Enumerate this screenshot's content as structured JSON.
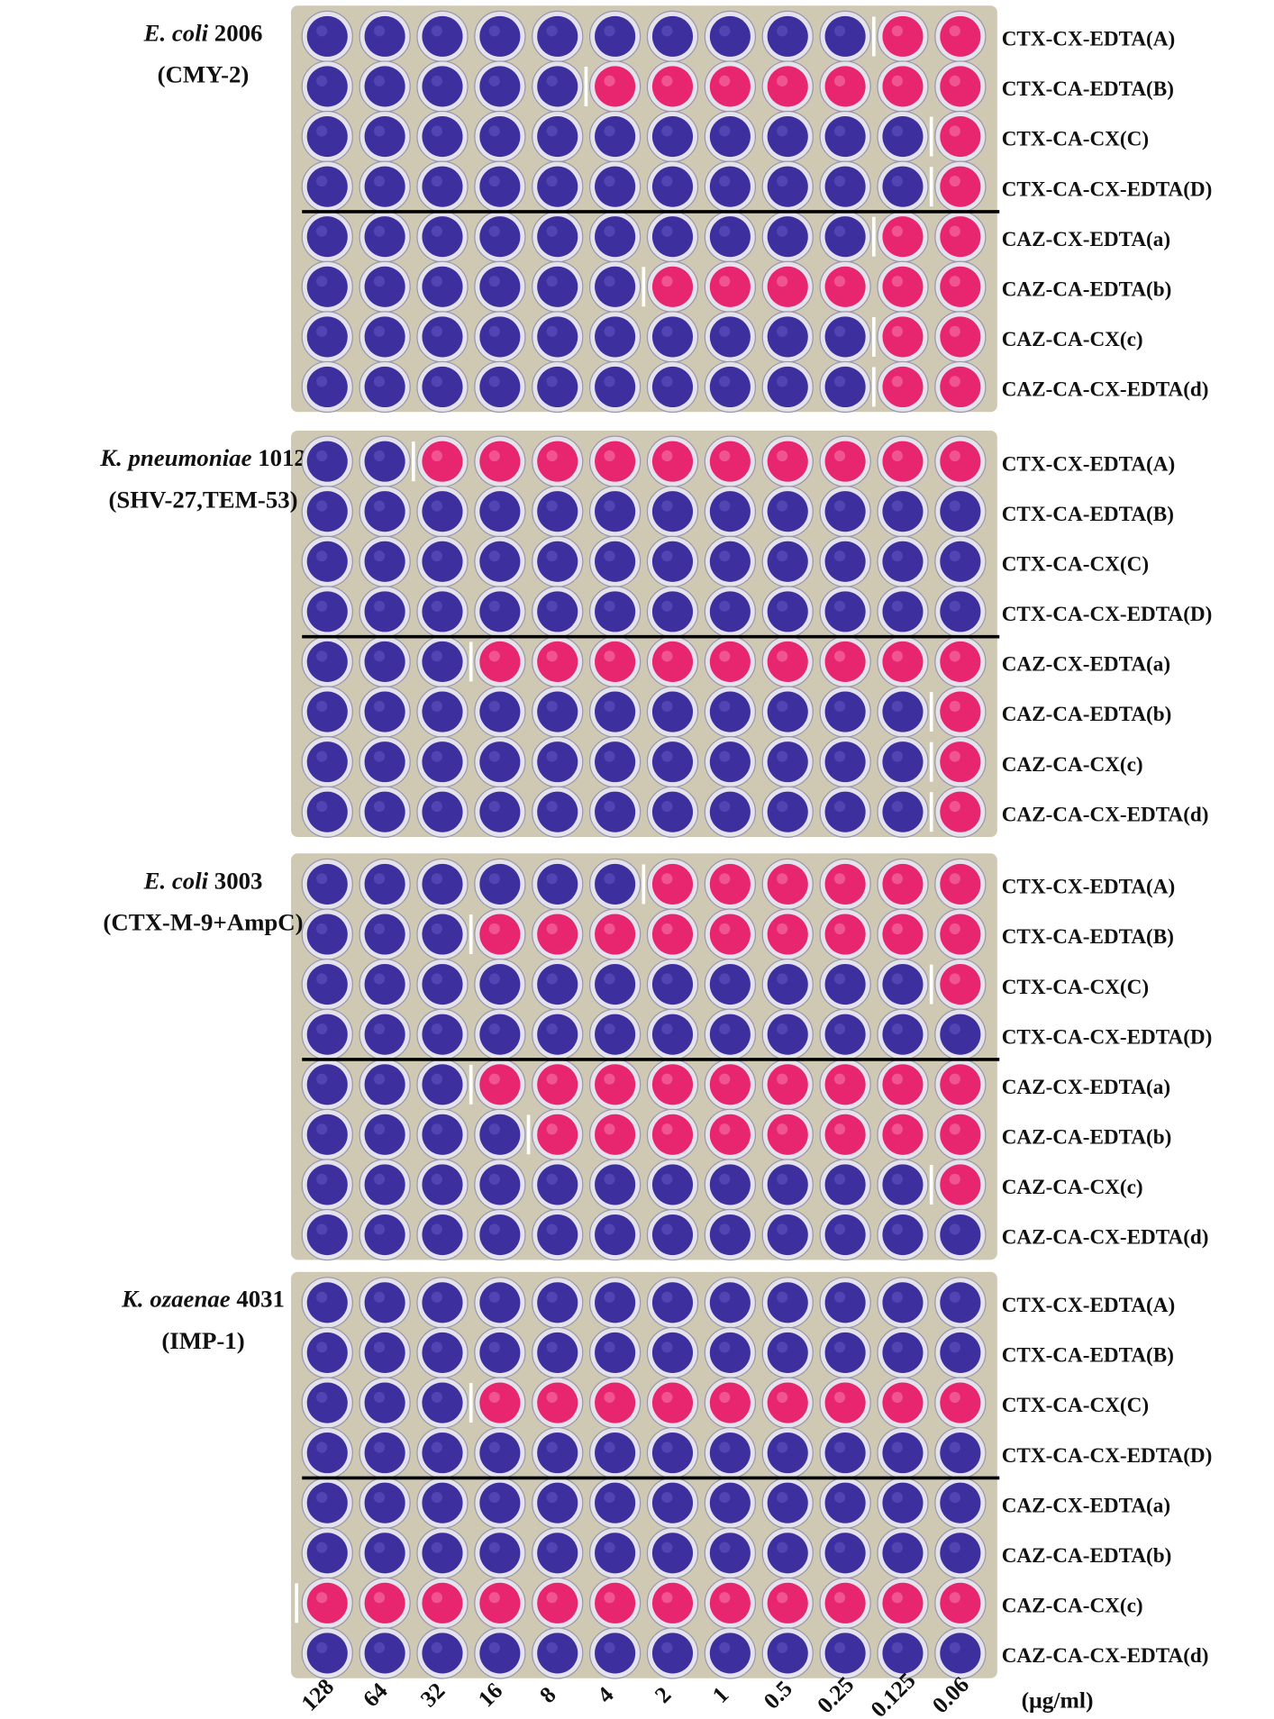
{
  "panels": [
    {
      "organism": "E. coli",
      "strain": "2006",
      "enzyme": "(CMY-2)",
      "rows": [
        "CTX-CX-EDTA(A)",
        "CTX-CA-EDTA(B)",
        "CTX-CA-CX(C)",
        "CTX-CA-CX-EDTA(D)",
        "CAZ-CX-EDTA(a)",
        "CAZ-CA-EDTA(b)",
        "CAZ-CA-CX(c)",
        "CAZ-CA-CX-EDTA(d)"
      ]
    },
    {
      "organism": "K. pneumoniae",
      "strain": "1012",
      "enzyme": "(SHV-27,TEM-53)",
      "rows": [
        "CTX-CX-EDTA(A)",
        "CTX-CA-EDTA(B)",
        "CTX-CA-CX(C)",
        "CTX-CA-CX-EDTA(D)",
        "CAZ-CX-EDTA(a)",
        "CAZ-CA-EDTA(b)",
        "CAZ-CA-CX(c)",
        "CAZ-CA-CX-EDTA(d)"
      ]
    },
    {
      "organism": "E. coli",
      "strain": "3003",
      "enzyme": "(CTX-M-9+AmpC)",
      "rows": [
        "CTX-CX-EDTA(A)",
        "CTX-CA-EDTA(B)",
        "CTX-CA-CX(C)",
        "CTX-CA-CX-EDTA(D)",
        "CAZ-CX-EDTA(a)",
        "CAZ-CA-EDTA(b)",
        "CAZ-CA-CX(c)",
        "CAZ-CA-CX-EDTA(d)"
      ]
    },
    {
      "organism": "K. ozaenae",
      "strain": "4031",
      "enzyme": "(IMP-1)",
      "rows": [
        "CTX-CX-EDTA(A)",
        "CTX-CA-EDTA(B)",
        "CTX-CA-CX(C)",
        "CTX-CA-CX-EDTA(D)",
        "CAZ-CX-EDTA(a)",
        "CAZ-CA-EDTA(b)",
        "CAZ-CA-CX(c)",
        "CAZ-CA-CX-EDTA(d)"
      ]
    }
  ],
  "concentrations": [
    "128",
    "64",
    "32",
    "16",
    "8",
    "4",
    "2",
    "1",
    "0.5",
    "0.25",
    "0.125",
    "0.06"
  ],
  "unit": "(μg/ml)"
}
